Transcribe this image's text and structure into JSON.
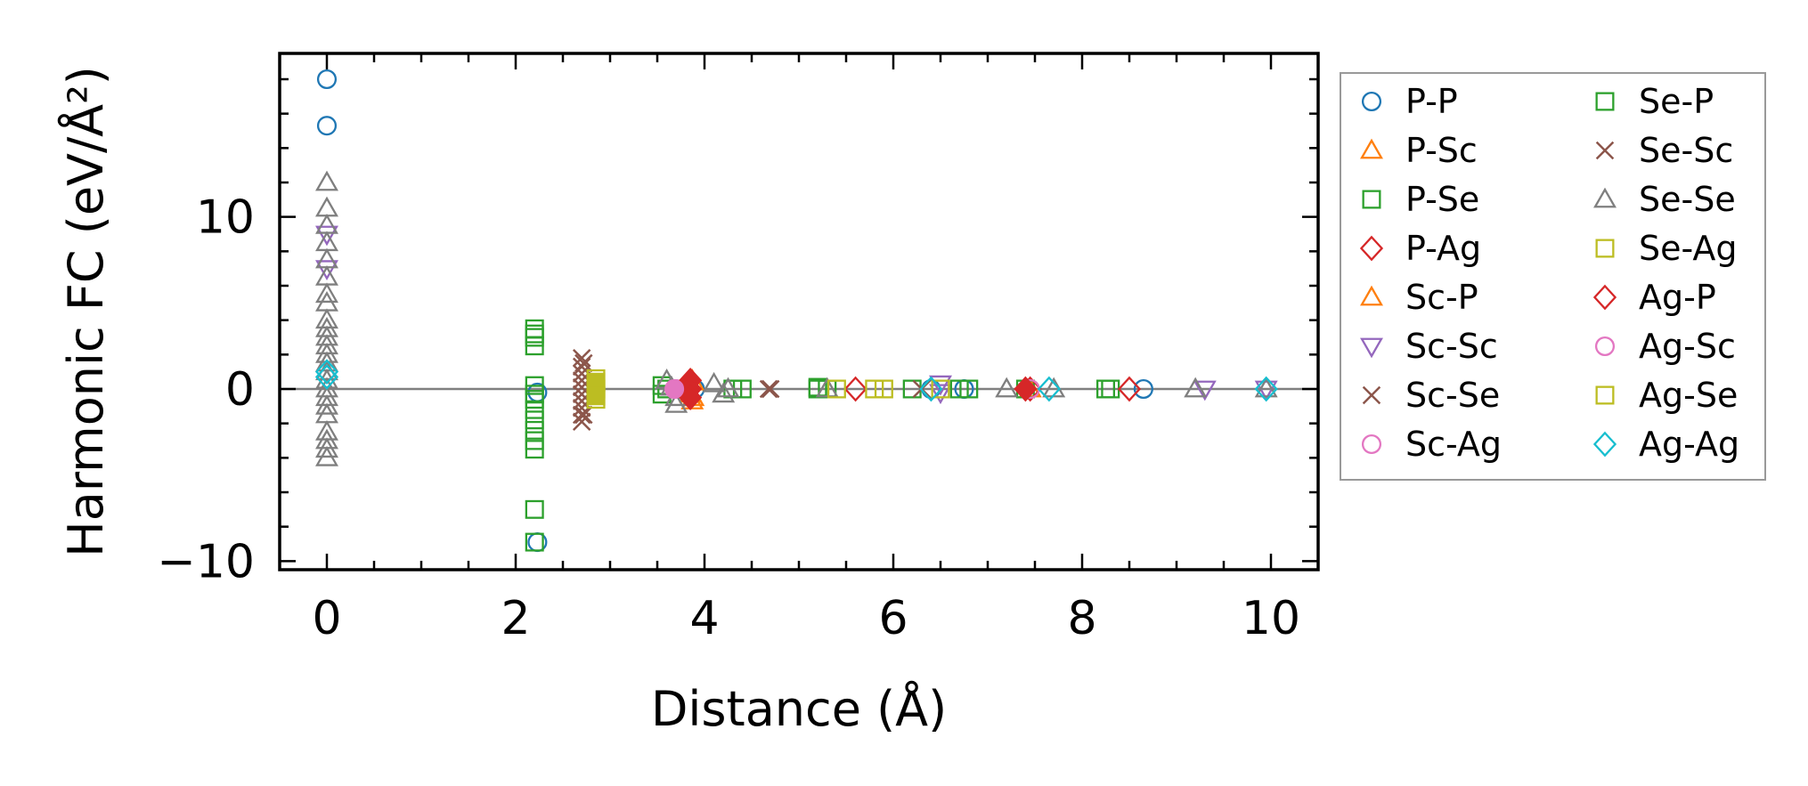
{
  "chart_data": {
    "type": "scatter",
    "title": "",
    "xlabel": "Distance (Å)",
    "ylabel": "Harmonic FC (eV/Å²)",
    "xlim": [
      -0.5,
      10.5
    ],
    "ylim": [
      -10.5,
      19.5
    ],
    "xticks": [
      0,
      2,
      4,
      6,
      8,
      10
    ],
    "yticks": [
      -10,
      0,
      10
    ],
    "xtick_labels": [
      "0",
      "2",
      "4",
      "6",
      "8",
      "10"
    ],
    "ytick_labels": [
      "−10",
      "0",
      "10"
    ],
    "zero_line": true,
    "legend_position": "outside-right",
    "series": [
      {
        "name": "P-P",
        "marker": "circle",
        "color": "#1f77b4",
        "filled": false,
        "points": [
          [
            0,
            18
          ],
          [
            0,
            15.3
          ],
          [
            2.23,
            -0.2
          ],
          [
            2.23,
            -8.9
          ],
          [
            6.75,
            0
          ],
          [
            8.65,
            0
          ],
          [
            3.9,
            0
          ],
          [
            6.4,
            0
          ]
        ]
      },
      {
        "name": "P-Sc",
        "marker": "triangle-up",
        "color": "#ff7f0e",
        "filled": false,
        "points": [
          [
            3.87,
            0.5
          ],
          [
            3.87,
            -0.7
          ],
          [
            3.85,
            -0.3
          ],
          [
            7.45,
            0
          ]
        ]
      },
      {
        "name": "P-Se",
        "marker": "square",
        "color": "#2ca02c",
        "filled": false,
        "points": [
          [
            2.2,
            3.5
          ],
          [
            2.2,
            3.0
          ],
          [
            2.2,
            2.5
          ],
          [
            2.2,
            0.2
          ],
          [
            2.2,
            -0.6
          ],
          [
            2.2,
            -1.2
          ],
          [
            2.2,
            -1.8
          ],
          [
            2.2,
            -2.4
          ],
          [
            2.2,
            -3.0
          ],
          [
            2.2,
            -3.5
          ],
          [
            2.2,
            -7.0
          ],
          [
            2.2,
            -8.9
          ],
          [
            3.55,
            0.2
          ],
          [
            3.55,
            -0.3
          ],
          [
            4.3,
            0
          ],
          [
            4.4,
            0
          ],
          [
            5.2,
            0
          ],
          [
            5.2,
            0.1
          ],
          [
            6.2,
            0
          ],
          [
            6.8,
            0
          ],
          [
            7.4,
            0
          ],
          [
            8.3,
            0
          ]
        ]
      },
      {
        "name": "P-Ag",
        "marker": "diamond",
        "color": "#d62728",
        "filled": false,
        "points": [
          [
            3.85,
            0
          ],
          [
            5.6,
            0
          ],
          [
            7.45,
            0
          ],
          [
            8.5,
            0
          ]
        ]
      },
      {
        "name": "Sc-P",
        "marker": "triangle-up",
        "color": "#ff7f0e",
        "filled": false,
        "points": [
          [
            3.88,
            0.4
          ],
          [
            3.88,
            -0.5
          ]
        ]
      },
      {
        "name": "Sc-Sc",
        "marker": "triangle-down",
        "color": "#9467bd",
        "filled": false,
        "points": [
          [
            0,
            9.0
          ],
          [
            0,
            7.0
          ],
          [
            6.5,
            0.3
          ],
          [
            6.5,
            -0.2
          ],
          [
            9.3,
            0
          ],
          [
            9.95,
            0
          ]
        ]
      },
      {
        "name": "Sc-Se",
        "marker": "x",
        "color": "#8c564b",
        "filled": false,
        "points": [
          [
            2.7,
            1.8
          ],
          [
            2.7,
            1.3
          ],
          [
            2.7,
            0.9
          ],
          [
            2.7,
            0.5
          ],
          [
            2.7,
            0.1
          ],
          [
            2.7,
            -0.3
          ],
          [
            2.7,
            -0.7
          ],
          [
            2.7,
            -1.1
          ],
          [
            2.7,
            -1.5
          ],
          [
            2.7,
            -1.9
          ],
          [
            4.7,
            0
          ],
          [
            6.3,
            0
          ]
        ]
      },
      {
        "name": "Sc-Ag",
        "marker": "circle",
        "color": "#e377c2",
        "filled": false,
        "points": [
          [
            3.7,
            0
          ],
          [
            7.45,
            0
          ]
        ]
      },
      {
        "name": "Se-P",
        "marker": "square",
        "color": "#2ca02c",
        "filled": false,
        "points": [
          [
            2.2,
            3.2
          ],
          [
            2.2,
            -0.3
          ],
          [
            3.6,
            0
          ],
          [
            5.3,
            0
          ],
          [
            6.7,
            0
          ],
          [
            8.25,
            0
          ]
        ]
      },
      {
        "name": "Se-Sc",
        "marker": "x",
        "color": "#8c564b",
        "filled": false,
        "points": [
          [
            2.72,
            1.5
          ],
          [
            2.72,
            -1.5
          ],
          [
            4.68,
            0
          ]
        ]
      },
      {
        "name": "Se-Se",
        "marker": "triangle-up",
        "color": "#7f7f7f",
        "filled": false,
        "points": [
          [
            0,
            12
          ],
          [
            0,
            10.5
          ],
          [
            0,
            9.5
          ],
          [
            0,
            8.5
          ],
          [
            0,
            7.5
          ],
          [
            0,
            6.5
          ],
          [
            0,
            5.5
          ],
          [
            0,
            5.0
          ],
          [
            0,
            4.0
          ],
          [
            0,
            3.5
          ],
          [
            0,
            3.0
          ],
          [
            0,
            2.5
          ],
          [
            0,
            2.0
          ],
          [
            0,
            1.5
          ],
          [
            0,
            1.0
          ],
          [
            0,
            0.5
          ],
          [
            0,
            0
          ],
          [
            0,
            -0.5
          ],
          [
            0,
            -1.0
          ],
          [
            0,
            -1.5
          ],
          [
            0,
            -2.5
          ],
          [
            0,
            -3.0
          ],
          [
            0,
            -3.5
          ],
          [
            0,
            -4.0
          ],
          [
            3.6,
            0.5
          ],
          [
            3.65,
            0.1
          ],
          [
            3.7,
            -0.5
          ],
          [
            3.7,
            -0.9
          ],
          [
            4.1,
            0.3
          ],
          [
            4.2,
            -0.3
          ],
          [
            4.25,
            0
          ],
          [
            5.3,
            0
          ],
          [
            7.2,
            0
          ],
          [
            7.7,
            0
          ],
          [
            9.2,
            0
          ],
          [
            9.95,
            0
          ]
        ]
      },
      {
        "name": "Se-Ag",
        "marker": "square",
        "color": "#bcbd22",
        "filled": false,
        "points": [
          [
            2.85,
            0.6
          ],
          [
            2.85,
            0
          ],
          [
            2.85,
            -0.6
          ],
          [
            5.4,
            0
          ],
          [
            5.8,
            0
          ],
          [
            5.9,
            0
          ],
          [
            6.5,
            0
          ]
        ]
      },
      {
        "name": "Ag-P",
        "marker": "diamond",
        "color": "#d62728",
        "filled": true,
        "points": [
          [
            3.85,
            0.5
          ],
          [
            3.85,
            0
          ],
          [
            3.85,
            -0.5
          ],
          [
            7.4,
            0
          ]
        ]
      },
      {
        "name": "Ag-Sc",
        "marker": "circle",
        "color": "#e377c2",
        "filled": true,
        "points": [
          [
            3.68,
            0
          ]
        ]
      },
      {
        "name": "Ag-Se",
        "marker": "square",
        "color": "#bcbd22",
        "filled": true,
        "points": [
          [
            2.85,
            0.4
          ],
          [
            2.85,
            -0.4
          ]
        ]
      },
      {
        "name": "Ag-Ag",
        "marker": "diamond",
        "color": "#17becf",
        "filled": false,
        "points": [
          [
            0,
            1.0
          ],
          [
            0,
            0.7
          ],
          [
            6.4,
            0
          ],
          [
            7.65,
            0
          ],
          [
            9.95,
            0
          ]
        ]
      }
    ]
  }
}
